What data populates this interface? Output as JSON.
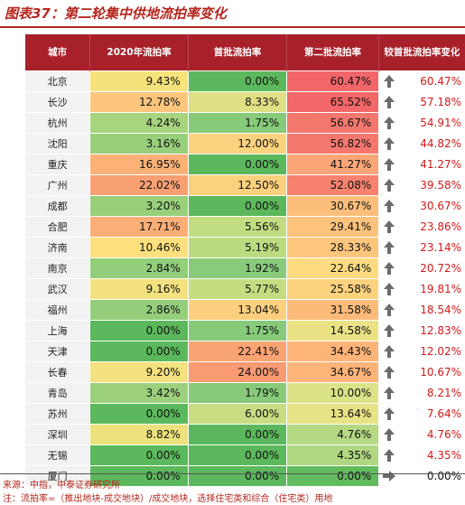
{
  "title": "图表37：第二轮集中供地流拍率变化",
  "table": {
    "headers": [
      "城市",
      "2020年流拍率",
      "首批流拍率",
      "第二批流拍率",
      "较首批流拍率变化"
    ],
    "rows": [
      {
        "city": "北京",
        "y2020": "9.43%",
        "first": "0.00%",
        "second": "60.47%",
        "change": "60.47%",
        "dir": "up",
        "colors": [
          "#f6e27a",
          "#5cb85c",
          "#f2666a"
        ]
      },
      {
        "city": "长沙",
        "y2020": "12.78%",
        "first": "8.33%",
        "second": "65.52%",
        "change": "57.18%",
        "dir": "up",
        "colors": [
          "#fcc57e",
          "#dfe083",
          "#f26768"
        ]
      },
      {
        "city": "杭州",
        "y2020": "4.24%",
        "first": "1.75%",
        "second": "56.67%",
        "change": "54.91%",
        "dir": "up",
        "colors": [
          "#a7d47e",
          "#86ca7a",
          "#f5786f"
        ]
      },
      {
        "city": "沈阳",
        "y2020": "3.16%",
        "first": "12.00%",
        "second": "56.82%",
        "change": "44.82%",
        "dir": "up",
        "colors": [
          "#98cf7b",
          "#fbd37e",
          "#f5786f"
        ]
      },
      {
        "city": "重庆",
        "y2020": "16.95%",
        "first": "0.00%",
        "second": "41.27%",
        "change": "41.27%",
        "dir": "up",
        "colors": [
          "#fcb177",
          "#5cb85c",
          "#fca577"
        ]
      },
      {
        "city": "广州",
        "y2020": "22.02%",
        "first": "12.50%",
        "second": "52.08%",
        "change": "39.58%",
        "dir": "up",
        "colors": [
          "#f9a073",
          "#fbd17d",
          "#f7836f"
        ]
      },
      {
        "city": "成都",
        "y2020": "3.20%",
        "first": "0.00%",
        "second": "30.67%",
        "change": "30.67%",
        "dir": "up",
        "colors": [
          "#99cf7b",
          "#5cb85c",
          "#fdbe7b"
        ]
      },
      {
        "city": "合肥",
        "y2020": "17.71%",
        "first": "5.56%",
        "second": "29.41%",
        "change": "23.86%",
        "dir": "up",
        "colors": [
          "#fcae77",
          "#c2dc81",
          "#fdc27c"
        ]
      },
      {
        "city": "济南",
        "y2020": "10.46%",
        "first": "5.19%",
        "second": "28.33%",
        "change": "23.14%",
        "dir": "up",
        "colors": [
          "#fce07d",
          "#bcdb80",
          "#fdc67d"
        ]
      },
      {
        "city": "南京",
        "y2020": "2.84%",
        "first": "1.92%",
        "second": "22.64%",
        "change": "20.72%",
        "dir": "up",
        "colors": [
          "#93ce7b",
          "#89cb7b",
          "#fedb80"
        ]
      },
      {
        "city": "武汉",
        "y2020": "9.16%",
        "first": "5.77%",
        "second": "25.58%",
        "change": "19.81%",
        "dir": "up",
        "colors": [
          "#f3e17f",
          "#c5dd81",
          "#fdd27e"
        ]
      },
      {
        "city": "福州",
        "y2020": "2.86%",
        "first": "13.04%",
        "second": "31.58%",
        "change": "18.54%",
        "dir": "up",
        "colors": [
          "#94ce7b",
          "#fbcf7d",
          "#fdbb7a"
        ]
      },
      {
        "city": "上海",
        "y2020": "0.00%",
        "first": "1.75%",
        "second": "14.58%",
        "change": "12.83%",
        "dir": "up",
        "colors": [
          "#5cb85c",
          "#86ca7a",
          "#ebe285"
        ]
      },
      {
        "city": "天津",
        "y2020": "0.00%",
        "first": "22.41%",
        "second": "34.43%",
        "change": "12.02%",
        "dir": "up",
        "colors": [
          "#5cb85c",
          "#faa373",
          "#fdb479"
        ]
      },
      {
        "city": "长春",
        "y2020": "9.20%",
        "first": "24.00%",
        "second": "34.67%",
        "change": "10.67%",
        "dir": "up",
        "colors": [
          "#f4e17f",
          "#f89a72",
          "#fdb479"
        ]
      },
      {
        "city": "青岛",
        "y2020": "3.42%",
        "first": "1.79%",
        "second": "10.00%",
        "change": "8.21%",
        "dir": "up",
        "colors": [
          "#9cd07c",
          "#87ca7a",
          "#dce287"
        ]
      },
      {
        "city": "苏州",
        "y2020": "0.00%",
        "first": "6.00%",
        "second": "13.64%",
        "change": "7.64%",
        "dir": "up",
        "colors": [
          "#5cb85c",
          "#c8dd82",
          "#e8e286"
        ]
      },
      {
        "city": "深圳",
        "y2020": "8.82%",
        "first": "0.00%",
        "second": "4.76%",
        "change": "4.76%",
        "dir": "up",
        "colors": [
          "#ede17e",
          "#5cb85c",
          "#b5d882"
        ]
      },
      {
        "city": "无锡",
        "y2020": "0.00%",
        "first": "0.00%",
        "second": "4.35%",
        "change": "4.35%",
        "dir": "up",
        "colors": [
          "#5cb85c",
          "#5cb85c",
          "#b0d782"
        ]
      },
      {
        "city": "厦门",
        "y2020": "0.00%",
        "first": "0.00%",
        "second": "0.00%",
        "change": "0.00%",
        "dir": "right",
        "colors": [
          "#5cb85c",
          "#5cb85c",
          "#63bb60"
        ]
      }
    ]
  },
  "footnotes": {
    "source": "来源：中指，中泰证券研究所",
    "note": "注：流拍率=（推出地块-成交地块）/成交地块，选择住宅类和综合（住宅类）用地"
  },
  "colors": {
    "header": "#a8212a",
    "title": "#b5271f",
    "up": "#d11a1a",
    "arrow": "#6b6b6b"
  },
  "chart_data": {
    "type": "table",
    "title": "图表37：第二轮集中供地流拍率变化",
    "columns": [
      "城市",
      "2020年流拍率",
      "首批流拍率",
      "第二批流拍率",
      "较首批流拍率变化"
    ],
    "rows": [
      [
        "北京",
        9.43,
        0.0,
        60.47,
        60.47
      ],
      [
        "长沙",
        12.78,
        8.33,
        65.52,
        57.18
      ],
      [
        "杭州",
        4.24,
        1.75,
        56.67,
        54.91
      ],
      [
        "沈阳",
        3.16,
        12.0,
        56.82,
        44.82
      ],
      [
        "重庆",
        16.95,
        0.0,
        41.27,
        41.27
      ],
      [
        "广州",
        22.02,
        12.5,
        52.08,
        39.58
      ],
      [
        "成都",
        3.2,
        0.0,
        30.67,
        30.67
      ],
      [
        "合肥",
        17.71,
        5.56,
        29.41,
        23.86
      ],
      [
        "济南",
        10.46,
        5.19,
        28.33,
        23.14
      ],
      [
        "南京",
        2.84,
        1.92,
        22.64,
        20.72
      ],
      [
        "武汉",
        9.16,
        5.77,
        25.58,
        19.81
      ],
      [
        "福州",
        2.86,
        13.04,
        31.58,
        18.54
      ],
      [
        "上海",
        0.0,
        1.75,
        14.58,
        12.83
      ],
      [
        "天津",
        0.0,
        22.41,
        34.43,
        12.02
      ],
      [
        "长春",
        9.2,
        24.0,
        34.67,
        10.67
      ],
      [
        "青岛",
        3.42,
        1.79,
        10.0,
        8.21
      ],
      [
        "苏州",
        0.0,
        6.0,
        13.64,
        7.64
      ],
      [
        "深圳",
        8.82,
        0.0,
        4.76,
        4.76
      ],
      [
        "无锡",
        0.0,
        0.0,
        4.35,
        4.35
      ],
      [
        "厦门",
        0.0,
        0.0,
        0.0,
        0.0
      ]
    ],
    "units": "%"
  }
}
